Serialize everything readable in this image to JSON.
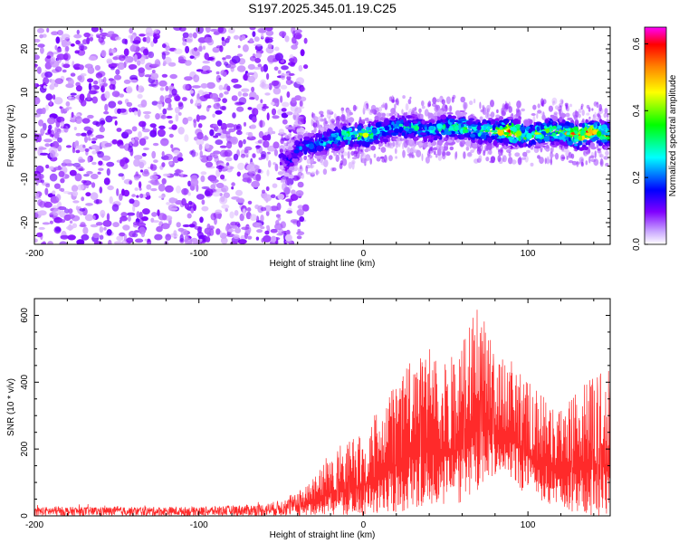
{
  "title": "S197.2025.345.01.19.C25",
  "chart_data": [
    {
      "type": "heatmap",
      "xlabel": "Height of straight line (km)",
      "ylabel": "Frequency (Hz)",
      "xlim": [
        -200,
        150
      ],
      "ylim": [
        -25,
        25
      ],
      "x_ticks": [
        -200,
        -100,
        0,
        100
      ],
      "y_ticks": [
        -20,
        -10,
        0,
        10,
        20
      ],
      "colorbar": {
        "label": "Normalized spectral amplitude",
        "range": [
          0,
          0.65
        ],
        "ticks": [
          "0.0",
          "0.2",
          "0.4",
          "0.6"
        ],
        "colormap": [
          "#ffffff",
          "#8000ff",
          "#0000ff",
          "#00ffff",
          "#00ff00",
          "#ffff00",
          "#ff8000",
          "#ff0000",
          "#ff00ff"
        ]
      },
      "ridge": {
        "x": [
          -50,
          -45,
          -40,
          -30,
          -20,
          -10,
          0,
          10,
          20,
          30,
          40,
          50,
          60,
          70,
          80,
          90,
          100,
          110,
          120,
          130,
          140,
          150
        ],
        "freq": [
          -5,
          -6,
          -3,
          -2,
          -1,
          0,
          0,
          1,
          2,
          2,
          1,
          2,
          2,
          1,
          1,
          1,
          0,
          1,
          1,
          0,
          1,
          0
        ],
        "peak_amplitude": [
          0.12,
          0.18,
          0.2,
          0.22,
          0.3,
          0.35,
          0.4,
          0.3,
          0.28,
          0.3,
          0.25,
          0.32,
          0.35,
          0.3,
          0.4,
          0.55,
          0.35,
          0.4,
          0.38,
          0.6,
          0.5,
          0.4
        ]
      },
      "noise_region": {
        "x_range": [
          -200,
          -35
        ],
        "amplitude": 0.08
      }
    },
    {
      "type": "line",
      "xlabel": "Height of straight line (km)",
      "ylabel": "SNR (10 * v/v)",
      "xlim": [
        -200,
        150
      ],
      "ylim": [
        0,
        650
      ],
      "x_ticks": [
        -200,
        -100,
        0,
        100
      ],
      "y_ticks": [
        0,
        200,
        400,
        600
      ],
      "series": [
        {
          "color": "#ff2a2a",
          "envelope_x": [
            -200,
            -100,
            -60,
            -45,
            -35,
            -20,
            -10,
            0,
            10,
            20,
            30,
            40,
            50,
            60,
            70,
            80,
            90,
            100,
            110,
            120,
            130,
            140,
            150
          ],
          "envelope_upper": [
            30,
            30,
            40,
            60,
            90,
            200,
            220,
            260,
            320,
            420,
            480,
            500,
            460,
            520,
            640,
            480,
            470,
            400,
            360,
            340,
            380,
            420,
            440
          ],
          "envelope_lower": [
            0,
            0,
            0,
            0,
            0,
            0,
            0,
            0,
            0,
            10,
            20,
            30,
            30,
            40,
            80,
            120,
            100,
            60,
            40,
            20,
            10,
            0,
            0
          ]
        }
      ]
    }
  ]
}
